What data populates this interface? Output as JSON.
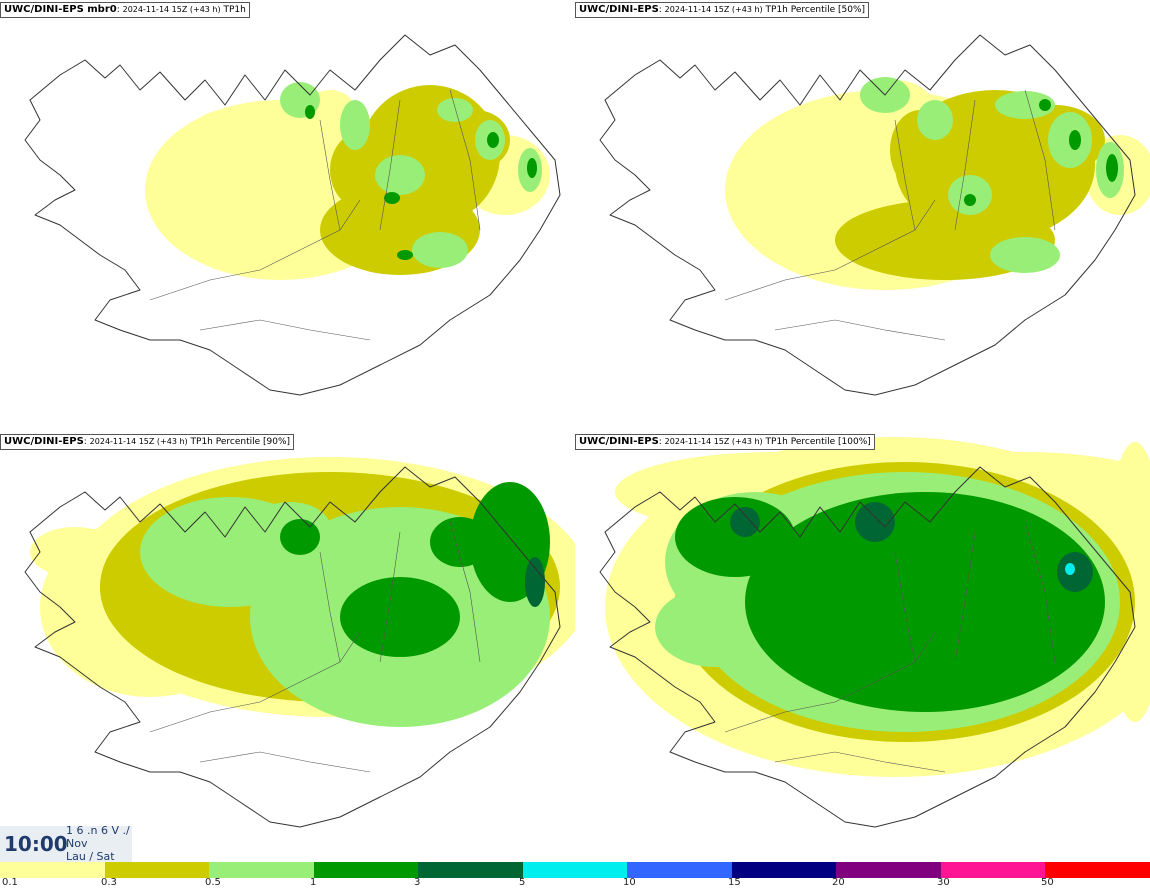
{
  "panels": [
    {
      "source": "UWC/DINI-EPS mbr0",
      "run": "2024-11-14 15Z (+43 h)",
      "field": "TP1h",
      "fields": [
        {
          "c": "#ffff99",
          "shapes": [
            [
              280,
              190,
              135,
              90
            ],
            [
              225,
              155,
              45,
              45
            ],
            [
              505,
              175,
              45,
              40
            ],
            [
              330,
              110,
              25,
              20
            ]
          ]
        },
        {
          "c": "#cccc00",
          "shapes": [
            [
              430,
              155,
              70,
              70
            ],
            [
              400,
              230,
              80,
              45
            ],
            [
              475,
              140,
              35,
              30
            ],
            [
              365,
              170,
              35,
              40
            ]
          ]
        },
        {
          "c": "#99ee77",
          "shapes": [
            [
              300,
              100,
              20,
              18
            ],
            [
              355,
              125,
              15,
              25
            ],
            [
              400,
              175,
              25,
              20
            ],
            [
              440,
              250,
              28,
              18
            ],
            [
              490,
              140,
              15,
              20
            ],
            [
              530,
              170,
              12,
              22
            ],
            [
              455,
              110,
              18,
              12
            ]
          ]
        },
        {
          "c": "#009900",
          "shapes": [
            [
              310,
              112,
              5,
              7
            ],
            [
              392,
              198,
              8,
              6
            ],
            [
              532,
              168,
              5,
              10
            ],
            [
              493,
              140,
              6,
              8
            ],
            [
              405,
              255,
              8,
              5
            ]
          ]
        }
      ]
    },
    {
      "source": "UWC/DINI-EPS",
      "run": "2024-11-14 15Z (+43 h)",
      "field": "TP1h Percentile [50%]",
      "fields": [
        {
          "c": "#ffff99",
          "shapes": [
            [
              310,
              190,
              160,
              100
            ],
            [
              230,
              160,
              40,
              45
            ],
            [
              545,
              175,
              35,
              40
            ],
            [
              320,
              110,
              40,
              30
            ]
          ]
        },
        {
          "c": "#cccc00",
          "shapes": [
            [
              420,
              165,
              100,
              75
            ],
            [
              370,
              240,
              110,
              40
            ],
            [
              480,
              140,
              50,
              35
            ],
            [
              345,
              150,
              30,
              40
            ]
          ]
        },
        {
          "c": "#99ee77",
          "shapes": [
            [
              310,
              95,
              25,
              18
            ],
            [
              360,
              120,
              18,
              20
            ],
            [
              395,
              195,
              22,
              20
            ],
            [
              450,
              255,
              35,
              18
            ],
            [
              495,
              140,
              22,
              28
            ],
            [
              535,
              170,
              14,
              28
            ],
            [
              450,
              105,
              30,
              14
            ]
          ]
        },
        {
          "c": "#009900",
          "shapes": [
            [
              500,
              140,
              6,
              10
            ],
            [
              537,
              168,
              6,
              14
            ],
            [
              470,
              105,
              6,
              6
            ],
            [
              395,
              200,
              6,
              6
            ]
          ]
        }
      ]
    },
    {
      "source": "UWC/DINI-EPS",
      "run": "2024-11-14 15Z (+43 h)",
      "field": "TP1h Percentile [90%]",
      "fields": [
        {
          "c": "#ffff99",
          "shapes": [
            [
              330,
              155,
              260,
              130
            ],
            [
              150,
              175,
              110,
              90
            ],
            [
              75,
              120,
              45,
              25
            ],
            [
              250,
              95,
              55,
              30
            ]
          ]
        },
        {
          "c": "#cccc00",
          "shapes": [
            [
              330,
              155,
              230,
              115
            ],
            [
              180,
              155,
              80,
              70
            ]
          ]
        },
        {
          "c": "#99ee77",
          "shapes": [
            [
              400,
              185,
              150,
              110
            ],
            [
              230,
              120,
              90,
              55
            ],
            [
              290,
              95,
              40,
              25
            ]
          ]
        },
        {
          "c": "#009900",
          "shapes": [
            [
              400,
              185,
              60,
              40
            ],
            [
              510,
              110,
              40,
              60
            ],
            [
              300,
              105,
              20,
              18
            ],
            [
              460,
              110,
              30,
              25
            ]
          ]
        },
        {
          "c": "#006633",
          "shapes": [
            [
              535,
              150,
              10,
              25
            ]
          ]
        }
      ]
    },
    {
      "source": "UWC/DINI-EPS",
      "run": "2024-11-14 15Z (+43 h)",
      "field": "TP1h Percentile [100%]",
      "fields": [
        {
          "c": "#ffff99",
          "shapes": [
            [
              320,
              175,
              290,
              170
            ],
            [
              200,
              60,
              160,
              40
            ],
            [
              450,
              80,
              180,
              60
            ],
            [
              560,
              150,
              30,
              140
            ]
          ]
        },
        {
          "c": "#cccc00",
          "shapes": [
            [
              330,
              170,
              230,
              140
            ]
          ]
        },
        {
          "c": "#99ee77",
          "shapes": [
            [
              330,
              170,
              215,
              130
            ],
            [
              180,
              130,
              90,
              70
            ],
            [
              140,
              195,
              60,
              40
            ]
          ]
        },
        {
          "c": "#009900",
          "shapes": [
            [
              350,
              170,
              180,
              110
            ],
            [
              160,
              105,
              60,
              40
            ]
          ]
        },
        {
          "c": "#006633",
          "shapes": [
            [
              300,
              90,
              20,
              20
            ],
            [
              500,
              140,
              18,
              20
            ],
            [
              170,
              90,
              15,
              15
            ]
          ]
        },
        {
          "c": "#00eeee",
          "shapes": [
            [
              495,
              137,
              5,
              6
            ]
          ]
        }
      ]
    }
  ],
  "timestamp": {
    "time": "10:00",
    "lines": [
      "1 6 .n 6 V ./",
      "Nov",
      "Lau / Sat"
    ]
  },
  "colorbar": {
    "colors": [
      "#ffff99",
      "#cccc00",
      "#99ee77",
      "#009900",
      "#006633",
      "#00eeee",
      "#3366ff",
      "#000080",
      "#800080",
      "#ff1493",
      "#ff0000"
    ],
    "ticks": [
      "0.1",
      "0.3",
      "0.5",
      "1",
      "3",
      "5",
      "10",
      "15",
      "20",
      "30",
      "50"
    ]
  }
}
